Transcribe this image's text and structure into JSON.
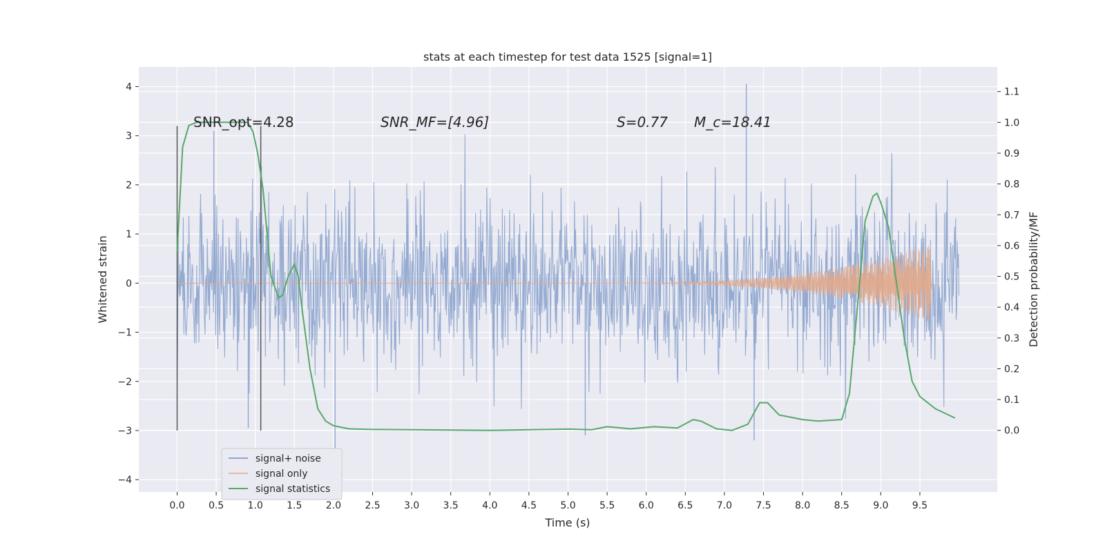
{
  "chart_data": {
    "type": "line",
    "title": "stats at each timestep for test data 1525 [signal=1]",
    "xlabel": "Time (s)",
    "ylabel": "Whitened strain",
    "y2label": "Detection probability/MF",
    "xlim": [
      -0.49,
      10.49
    ],
    "ylim": [
      -4.25,
      4.4
    ],
    "y2lim": [
      -0.2,
      1.18
    ],
    "xticks": [
      0.0,
      0.5,
      1.0,
      1.5,
      2.0,
      2.5,
      3.0,
      3.5,
      4.0,
      4.5,
      5.0,
      5.5,
      6.0,
      6.5,
      7.0,
      7.5,
      8.0,
      8.5,
      9.0,
      9.5
    ],
    "xtick_labels": [
      "0.0",
      "0.5",
      "1.0",
      "1.5",
      "2.0",
      "2.5",
      "3.0",
      "3.5",
      "4.0",
      "4.5",
      "5.0",
      "5.5",
      "6.0",
      "6.5",
      "7.0",
      "7.5",
      "8.0",
      "8.5",
      "9.0",
      "9.5"
    ],
    "yticks": [
      -4,
      -3,
      -2,
      -1,
      0,
      1,
      2,
      3,
      4
    ],
    "ytick_labels": [
      "−4",
      "−3",
      "−2",
      "−1",
      "0",
      "1",
      "2",
      "3",
      "4"
    ],
    "y2ticks": [
      0.0,
      0.1,
      0.2,
      0.3,
      0.4,
      0.5,
      0.6,
      0.7,
      0.8,
      0.9,
      1.0,
      1.1
    ],
    "y2tick_labels": [
      "0.0",
      "0.1",
      "0.2",
      "0.3",
      "0.4",
      "0.5",
      "0.6",
      "0.7",
      "0.8",
      "0.9",
      "1.0",
      "1.1"
    ],
    "grid": true,
    "legend_position": "lower-left",
    "annotations": [
      {
        "text": "SNR_opt=4.28",
        "x": 0.2,
        "y": 3.15
      },
      {
        "text": "SNR_MF=[4.96]",
        "x": 2.6,
        "y": 3.15
      },
      {
        "text": "S=0.77",
        "x": 5.6,
        "y": 3.15
      },
      {
        "text": "M_c=18.41",
        "x": 6.6,
        "y": 3.15
      }
    ],
    "vlines": [
      {
        "x": 0.0,
        "ymin": -3.0,
        "ymax": 3.2
      },
      {
        "x": 1.07,
        "ymin": -3.0,
        "ymax": 3.2
      }
    ],
    "series": [
      {
        "name": "signal+ noise",
        "axis": "left",
        "color": "#4c72b0",
        "description_range": [
          0.0,
          10.0
        ],
        "envelope_sigma": 0.85,
        "peaks": [
          {
            "x": 7.28,
            "y": 4.05
          },
          {
            "x": 2.02,
            "y": -3.4
          },
          {
            "x": 7.38,
            "y": -3.2
          },
          {
            "x": 0.47,
            "y": 3.1
          },
          {
            "x": 0.91,
            "y": -2.95
          },
          {
            "x": 5.22,
            "y": -3.1
          }
        ]
      },
      {
        "name": "signal only",
        "axis": "left",
        "color": "#dd8452",
        "x_start": 5.0,
        "x_end": 9.65,
        "peak_amplitude": 0.8
      },
      {
        "name": "signal statistics",
        "axis": "right",
        "color": "#55a868",
        "x": [
          0.0,
          0.07,
          0.15,
          0.25,
          0.4,
          0.6,
          0.8,
          0.9,
          0.97,
          1.03,
          1.1,
          1.2,
          1.3,
          1.35,
          1.42,
          1.5,
          1.55,
          1.6,
          1.7,
          1.8,
          1.9,
          2.0,
          2.2,
          2.5,
          3.0,
          3.5,
          4.0,
          4.5,
          5.0,
          5.3,
          5.5,
          5.8,
          6.1,
          6.4,
          6.6,
          6.7,
          6.9,
          7.1,
          7.3,
          7.45,
          7.55,
          7.7,
          8.0,
          8.2,
          8.5,
          8.6,
          8.7,
          8.8,
          8.9,
          8.95,
          9.0,
          9.1,
          9.2,
          9.3,
          9.4,
          9.5,
          9.7,
          9.95
        ],
        "values": [
          0.58,
          0.92,
          0.99,
          1.0,
          1.0,
          1.0,
          1.0,
          1.0,
          0.97,
          0.9,
          0.78,
          0.5,
          0.43,
          0.44,
          0.5,
          0.54,
          0.5,
          0.39,
          0.2,
          0.07,
          0.03,
          0.015,
          0.005,
          0.003,
          0.002,
          0.001,
          0.0,
          0.002,
          0.004,
          0.002,
          0.012,
          0.005,
          0.012,
          0.008,
          0.035,
          0.03,
          0.005,
          0.0,
          0.02,
          0.09,
          0.09,
          0.05,
          0.035,
          0.03,
          0.035,
          0.12,
          0.4,
          0.68,
          0.76,
          0.77,
          0.74,
          0.66,
          0.48,
          0.3,
          0.16,
          0.11,
          0.07,
          0.04
        ]
      }
    ]
  }
}
